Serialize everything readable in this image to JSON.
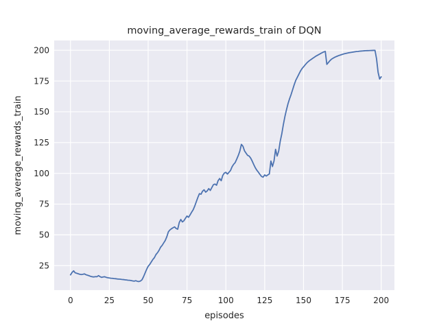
{
  "figure": {
    "background": "#ffffff"
  },
  "chart_data": {
    "type": "line",
    "title": "moving_average_rewards_train of DQN",
    "xlabel": "episodes",
    "ylabel": "moving_average_rewards_train",
    "grid": true,
    "legend": "none",
    "axes_background": "#eaeaf2",
    "grid_color": "#ffffff",
    "text_color": "#262626",
    "xticks": [
      0,
      25,
      50,
      75,
      100,
      125,
      150,
      175,
      200
    ],
    "yticks": [
      25,
      50,
      75,
      100,
      125,
      150,
      175,
      200
    ],
    "xlim": [
      -10.5,
      208.5
    ],
    "ylim": [
      5.1,
      207.9
    ],
    "x": [
      0,
      1,
      2,
      3,
      4,
      5,
      6,
      7,
      8,
      9,
      10,
      11,
      12,
      13,
      14,
      15,
      16,
      17,
      18,
      19,
      20,
      21,
      22,
      23,
      24,
      25,
      26,
      27,
      28,
      29,
      30,
      31,
      32,
      33,
      34,
      35,
      36,
      37,
      38,
      39,
      40,
      41,
      42,
      43,
      44,
      45,
      46,
      47,
      48,
      49,
      50,
      51,
      52,
      53,
      54,
      55,
      56,
      57,
      58,
      59,
      60,
      61,
      62,
      63,
      64,
      65,
      66,
      67,
      68,
      69,
      70,
      71,
      72,
      73,
      74,
      75,
      76,
      77,
      78,
      79,
      80,
      81,
      82,
      83,
      84,
      85,
      86,
      87,
      88,
      89,
      90,
      91,
      92,
      93,
      94,
      95,
      96,
      97,
      98,
      99,
      100,
      101,
      102,
      103,
      104,
      105,
      106,
      107,
      108,
      109,
      110,
      111,
      112,
      113,
      114,
      115,
      116,
      117,
      118,
      119,
      120,
      121,
      122,
      123,
      124,
      125,
      126,
      127,
      128,
      129,
      130,
      131,
      132,
      133,
      134,
      135,
      136,
      137,
      138,
      139,
      140,
      141,
      142,
      143,
      144,
      145,
      146,
      147,
      148,
      149,
      150,
      151,
      152,
      153,
      154,
      155,
      156,
      157,
      158,
      159,
      160,
      161,
      162,
      163,
      164,
      165,
      166,
      167,
      168,
      169,
      170,
      171,
      172,
      173,
      174,
      175,
      176,
      177,
      178,
      179,
      180,
      181,
      182,
      183,
      184,
      185,
      186,
      187,
      188,
      189,
      190,
      191,
      192,
      193,
      194,
      195,
      196,
      197,
      198,
      199,
      200
    ],
    "series": [
      {
        "name": "moving_average_rewards_train",
        "color": "#4c72b0",
        "values": [
          17.5,
          19.5,
          20.8,
          19.2,
          18.8,
          18.4,
          18.0,
          17.8,
          18.0,
          18.3,
          17.6,
          17.2,
          16.8,
          16.3,
          16.0,
          15.8,
          16.1,
          16.0,
          16.9,
          16.1,
          15.5,
          15.8,
          16.0,
          15.5,
          15.2,
          15.0,
          14.8,
          14.7,
          14.5,
          14.4,
          14.2,
          14.1,
          14.0,
          13.8,
          13.7,
          13.5,
          13.4,
          13.2,
          13.1,
          12.9,
          12.6,
          12.4,
          12.8,
          12.3,
          12.1,
          12.5,
          13.5,
          16.0,
          19.0,
          22.0,
          24.5,
          26.0,
          28.0,
          30.0,
          31.5,
          34.0,
          35.5,
          37.5,
          40.0,
          41.5,
          43.5,
          45.5,
          48.5,
          52.5,
          54.0,
          55.0,
          55.8,
          56.5,
          55.2,
          54.6,
          60.0,
          62.5,
          60.5,
          61.5,
          63.5,
          65.3,
          64.3,
          66.3,
          68.5,
          70.5,
          73.5,
          77.0,
          80.5,
          83.5,
          83.0,
          85.5,
          86.6,
          84.7,
          85.7,
          87.6,
          86.1,
          88.5,
          90.8,
          91.3,
          90.3,
          94.0,
          95.8,
          94.0,
          98.3,
          100.2,
          100.8,
          99.4,
          100.8,
          102.3,
          105.3,
          107.3,
          108.7,
          111.5,
          114.5,
          118.0,
          123.5,
          122.0,
          118.3,
          116.4,
          114.6,
          114.0,
          112.3,
          109.8,
          107.0,
          104.4,
          102.4,
          100.8,
          99.0,
          97.4,
          96.9,
          98.7,
          97.8,
          98.7,
          99.5,
          110.0,
          105.5,
          110.0,
          119.5,
          114.0,
          118.0,
          126.0,
          132.0,
          139.5,
          146.0,
          151.5,
          156.5,
          160.5,
          164.0,
          168.0,
          172.0,
          175.5,
          178.0,
          180.5,
          183.0,
          185.0,
          186.5,
          188.0,
          189.5,
          190.7,
          191.7,
          192.6,
          193.5,
          194.3,
          195.2,
          195.9,
          196.6,
          197.3,
          198.0,
          198.6,
          199.0,
          188.5,
          190.0,
          191.5,
          192.7,
          193.5,
          194.2,
          194.8,
          195.3,
          195.8,
          196.2,
          196.6,
          197.0,
          197.3,
          197.6,
          197.9,
          198.1,
          198.3,
          198.5,
          198.7,
          198.9,
          199.0,
          199.2,
          199.3,
          199.4,
          199.5,
          199.6,
          199.65,
          199.7,
          199.75,
          199.8,
          199.85,
          199.9,
          193.0,
          182.0,
          176.6,
          178.4
        ]
      }
    ]
  }
}
